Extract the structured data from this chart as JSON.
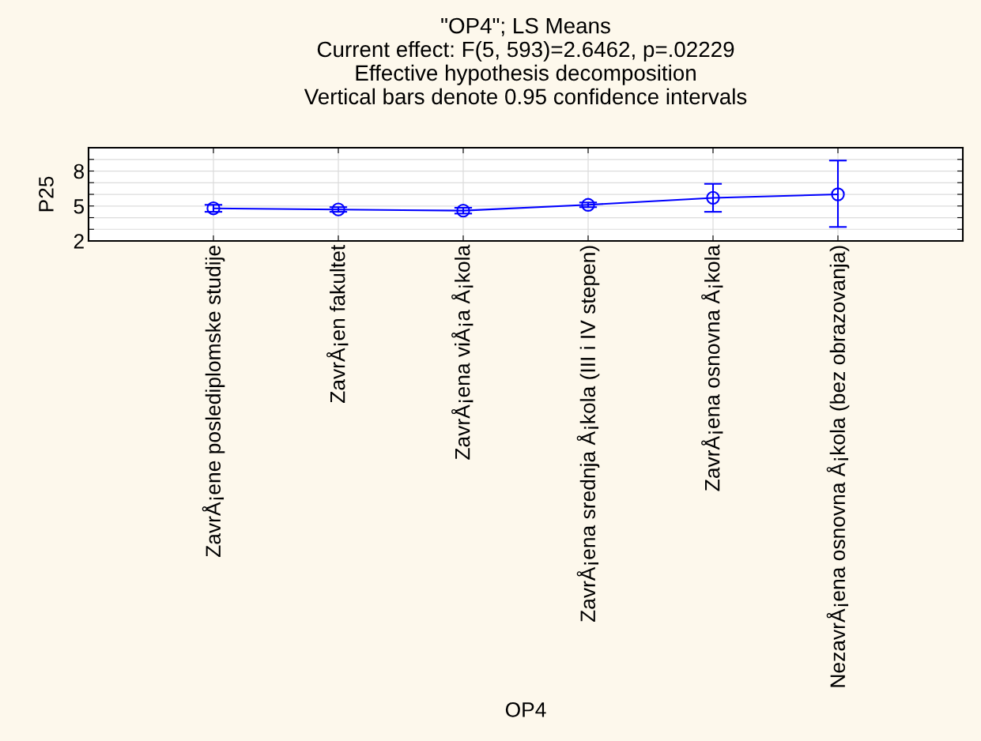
{
  "chart_data": {
    "type": "line",
    "title": "\"OP4\"; LS Means\nCurrent effect: F(5, 593)=2.6462, p=.02229\nEffective hypothesis decomposition\nVertical bars denote 0.95 confidence intervals",
    "xlabel": "OP4",
    "ylabel": "P25",
    "categories": [
      "ZavrÅ¡ene poslediplomske studije",
      "ZavrÅ¡en fakultet",
      "ZavrÅ¡ena viÅ¡a Å¡kola",
      "ZavrÅ¡ena srednja Å¡kola (III i IV stepen)",
      "ZavrÅ¡ena osnovna Å¡kola",
      "NezavrÅ¡ena osnovna Å¡kola (bez obrazovanja)"
    ],
    "series": [
      {
        "color": "#0000ff",
        "values": [
          4.8,
          4.7,
          4.6,
          5.1,
          5.7,
          6.0
        ],
        "errors": [
          [
            4.5,
            5.1
          ],
          [
            4.5,
            4.9
          ],
          [
            4.35,
            4.85
          ],
          [
            4.9,
            5.3
          ],
          [
            4.5,
            6.9
          ],
          [
            3.2,
            8.9
          ]
        ]
      }
    ],
    "ylim": [
      2,
      10
    ],
    "yticks": [
      2,
      {
        "value": 3,
        "label": null
      },
      {
        "value": 4,
        "label": null
      },
      5,
      {
        "value": 6,
        "label": null
      },
      {
        "value": 7,
        "label": null
      },
      8,
      {
        "value": 9,
        "label": null
      },
      {
        "value": 10,
        "label": null
      }
    ],
    "grid": true,
    "marker": "circle",
    "line_style": "solid",
    "legend": false
  }
}
